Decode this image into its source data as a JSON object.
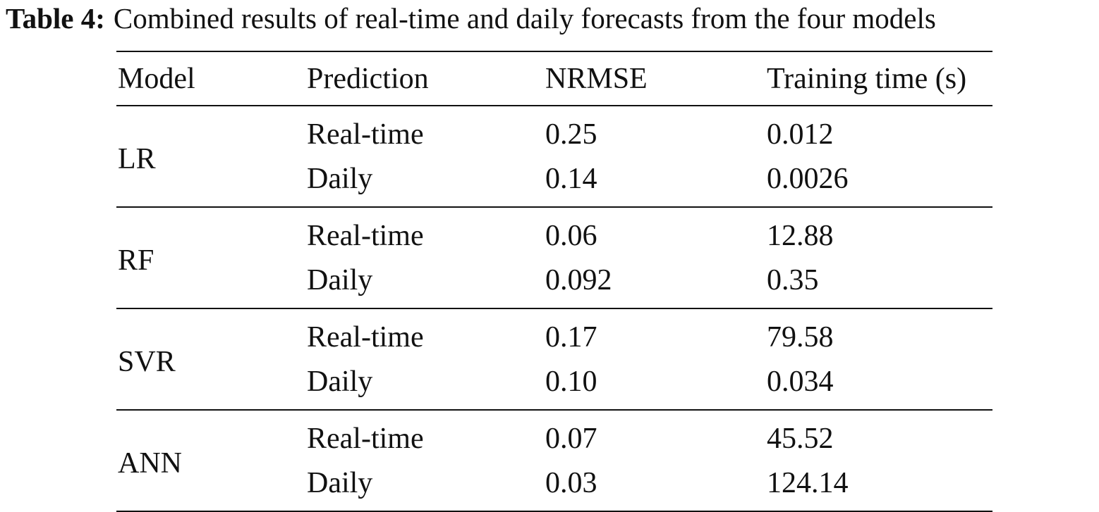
{
  "caption": {
    "label": "Table 4:",
    "text": "Combined results of real-time and daily forecasts from the four models"
  },
  "table": {
    "headers": [
      "Model",
      "Prediction",
      "NRMSE",
      "Training time (s)"
    ],
    "groups": [
      {
        "model": "LR",
        "rows": [
          {
            "prediction": "Real-time",
            "nrmse": "0.25",
            "time": "0.012"
          },
          {
            "prediction": "Daily",
            "nrmse": "0.14",
            "time": "0.0026"
          }
        ]
      },
      {
        "model": "RF",
        "rows": [
          {
            "prediction": "Real-time",
            "nrmse": "0.06",
            "time": "12.88"
          },
          {
            "prediction": "Daily",
            "nrmse": "0.092",
            "time": "0.35"
          }
        ]
      },
      {
        "model": "SVR",
        "rows": [
          {
            "prediction": "Real-time",
            "nrmse": "0.17",
            "time": "79.58"
          },
          {
            "prediction": "Daily",
            "nrmse": "0.10",
            "time": "0.034"
          }
        ]
      },
      {
        "model": "ANN",
        "rows": [
          {
            "prediction": "Real-time",
            "nrmse": "0.07",
            "time": "45.52"
          },
          {
            "prediction": "Daily",
            "nrmse": "0.03",
            "time": "124.14"
          }
        ]
      }
    ]
  }
}
